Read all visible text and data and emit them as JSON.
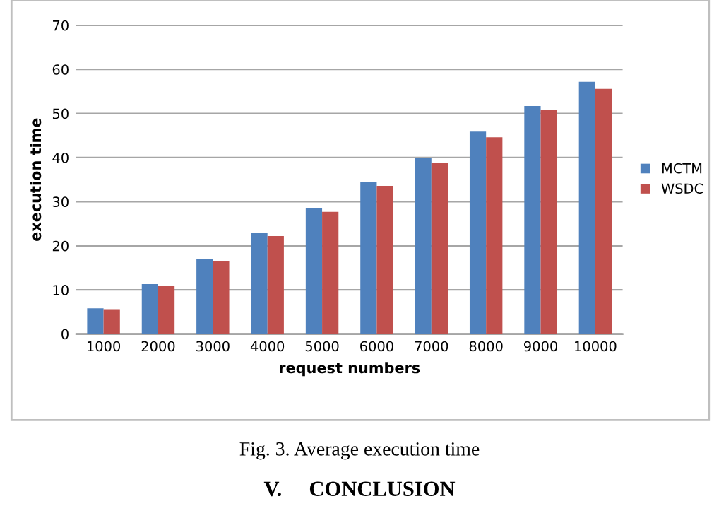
{
  "chart_data": {
    "type": "bar",
    "categories": [
      "1000",
      "2000",
      "3000",
      "4000",
      "5000",
      "6000",
      "7000",
      "8000",
      "9000",
      "10000"
    ],
    "series": [
      {
        "name": "MCTM",
        "color": "#4f81bd",
        "values": [
          5.8,
          11.3,
          17.0,
          23.0,
          28.6,
          34.5,
          39.9,
          45.9,
          51.7,
          57.2
        ]
      },
      {
        "name": "WSDC",
        "color": "#c0504d",
        "values": [
          5.6,
          11.0,
          16.6,
          22.2,
          27.7,
          33.6,
          38.8,
          44.6,
          50.8,
          55.6
        ]
      }
    ],
    "xlabel": "request numbers",
    "ylabel": "execution time",
    "ylim": [
      0,
      70
    ],
    "yticks": [
      0,
      10,
      20,
      30,
      40,
      50,
      60,
      70
    ],
    "grid": "y",
    "legend": "right",
    "annotations": [
      "Fig. 3. Average execution time",
      "V.     CONCLUSION"
    ]
  }
}
